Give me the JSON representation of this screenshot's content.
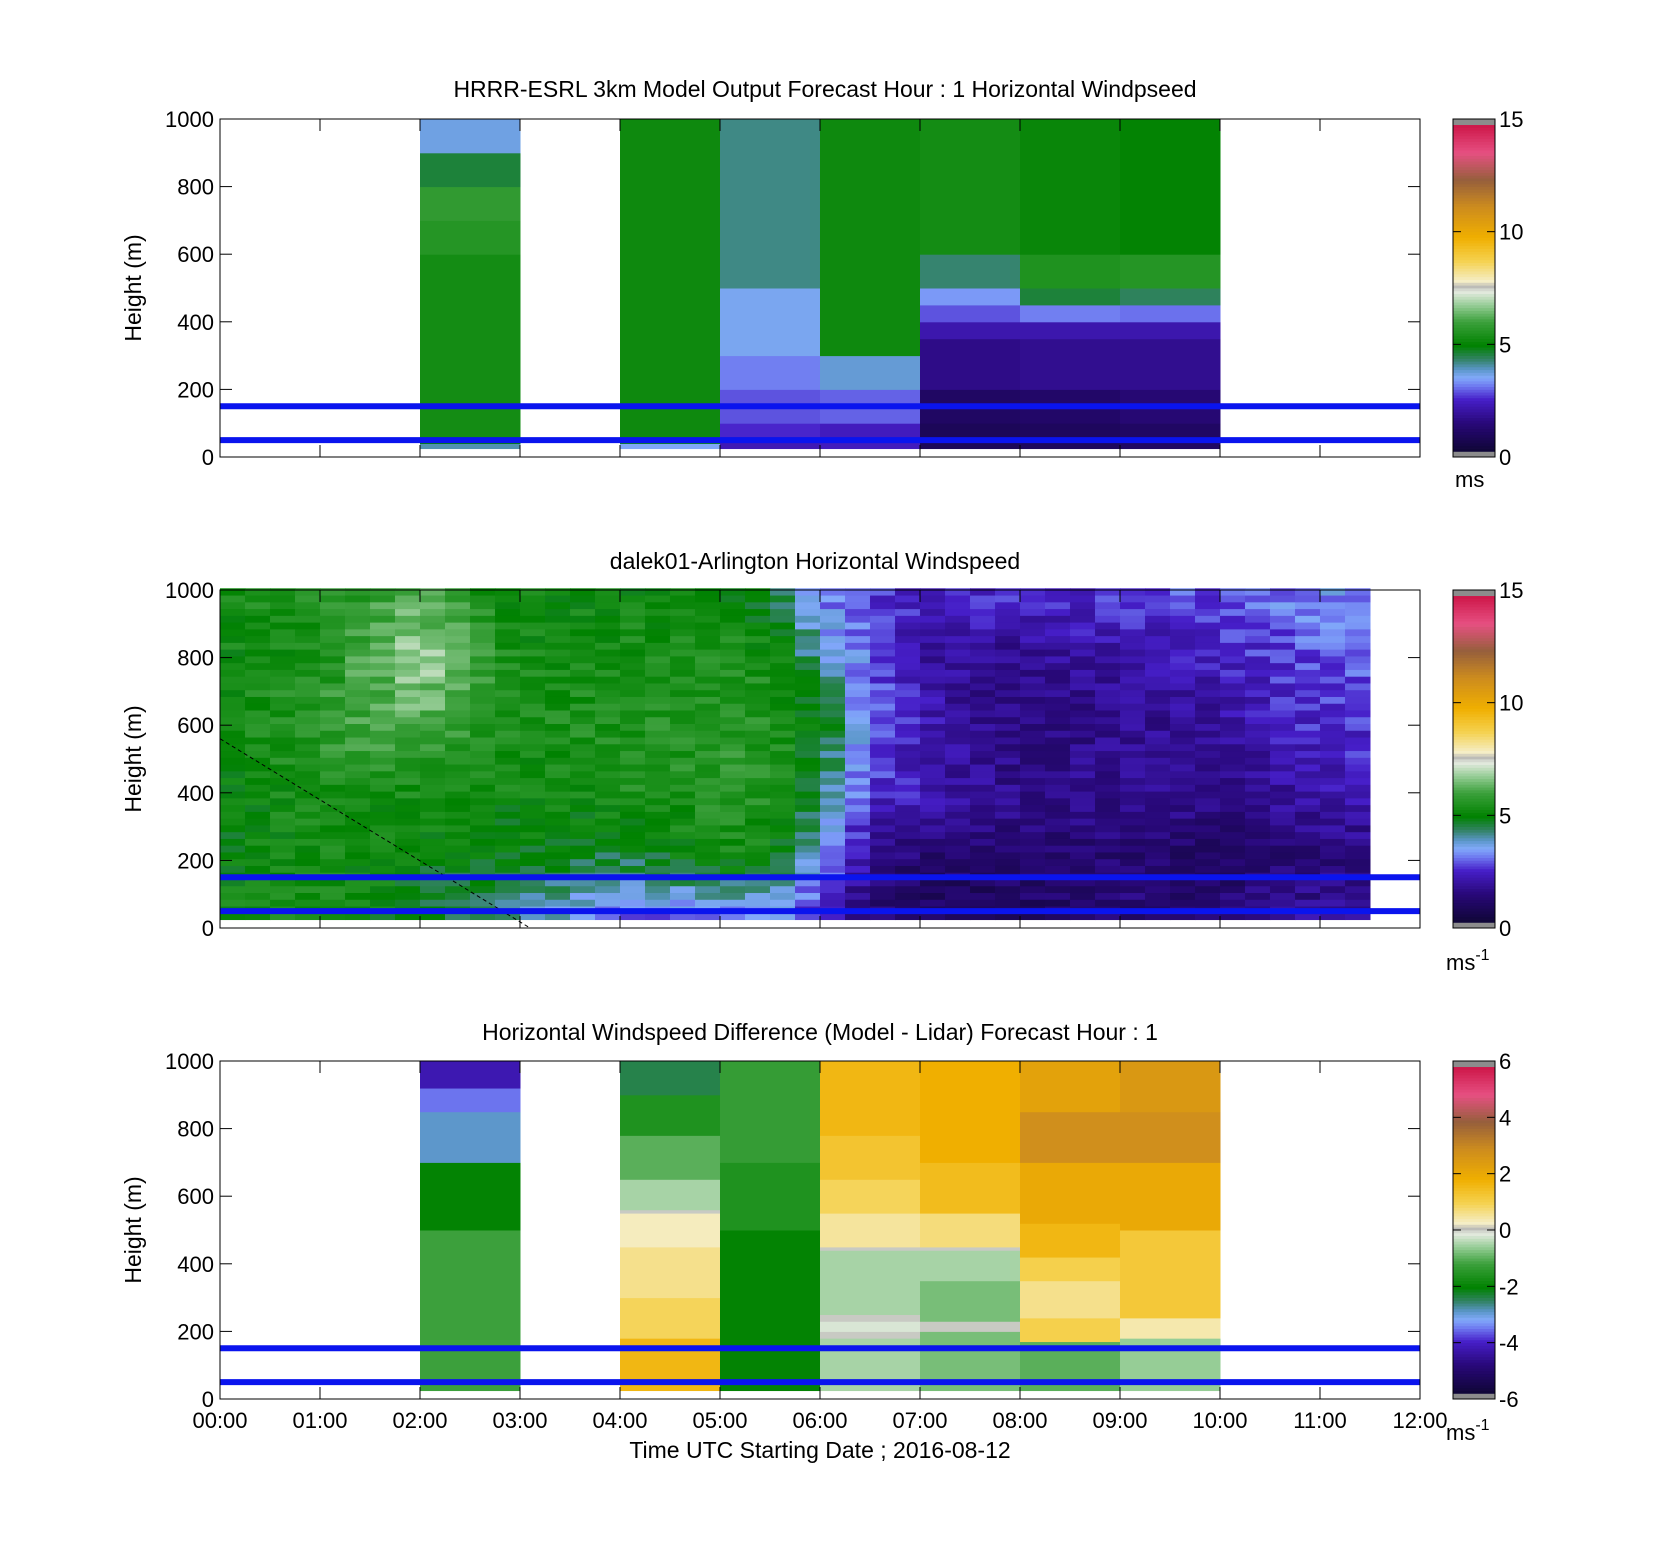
{
  "chart_data": [
    {
      "type": "heatmap",
      "title": "HRRR-ESRL 3km Model Output   Forecast Hour : 1 Horizontal Windpseed",
      "ylabel": "Height (m)",
      "xlabel": "",
      "x_range_hours": [
        0,
        12
      ],
      "ylim": [
        0,
        1000
      ],
      "yticks": [
        0,
        200,
        400,
        600,
        800,
        1000
      ],
      "colorbar": {
        "ticks": [
          0,
          5,
          10,
          15
        ],
        "unit": "ms",
        "unit_sup": "",
        "range": [
          0,
          15
        ]
      },
      "reference_lines_m": [
        50,
        150
      ],
      "cells": [
        {
          "x": [
            2,
            3
          ],
          "levels": [
            [
              25,
              40,
              4.0
            ],
            [
              40,
              60,
              5.0
            ],
            [
              60,
              1000,
              5.3
            ],
            [
              600,
              700,
              5.6
            ],
            [
              700,
              800,
              5.8
            ],
            [
              800,
              900,
              4.6
            ],
            [
              900,
              1000,
              3.7
            ]
          ]
        },
        {
          "x": [
            4,
            5
          ],
          "levels": [
            [
              25,
              40,
              3.5
            ],
            [
              40,
              60,
              4.8
            ],
            [
              60,
              1000,
              5.2
            ]
          ]
        },
        {
          "x": [
            5,
            6
          ],
          "levels": [
            [
              25,
              60,
              2.3
            ],
            [
              60,
              100,
              2.6
            ],
            [
              100,
              200,
              2.9
            ],
            [
              200,
              300,
              3.2
            ],
            [
              300,
              500,
              3.6
            ],
            [
              500,
              1000,
              4.2
            ]
          ]
        },
        {
          "x": [
            6,
            7
          ],
          "levels": [
            [
              25,
              100,
              2.4
            ],
            [
              100,
              200,
              3.0
            ],
            [
              200,
              300,
              3.8
            ],
            [
              300,
              1000,
              5.2
            ]
          ]
        },
        {
          "x": [
            7,
            8
          ],
          "levels": [
            [
              25,
              100,
              0.9
            ],
            [
              100,
              200,
              1.1
            ],
            [
              200,
              350,
              1.7
            ],
            [
              350,
              400,
              2.2
            ],
            [
              400,
              450,
              2.9
            ],
            [
              450,
              500,
              3.4
            ],
            [
              500,
              600,
              4.3
            ],
            [
              600,
              1000,
              5.3
            ]
          ]
        },
        {
          "x": [
            8,
            9
          ],
          "levels": [
            [
              25,
              100,
              1.0
            ],
            [
              100,
              200,
              1.2
            ],
            [
              200,
              350,
              1.8
            ],
            [
              350,
              400,
              2.2
            ],
            [
              400,
              450,
              3.2
            ],
            [
              450,
              500,
              4.6
            ],
            [
              500,
              600,
              5.5
            ],
            [
              600,
              1000,
              5.1
            ]
          ]
        },
        {
          "x": [
            9,
            10
          ],
          "levels": [
            [
              25,
              100,
              1.1
            ],
            [
              100,
              200,
              1.4
            ],
            [
              200,
              350,
              1.8
            ],
            [
              350,
              400,
              2.2
            ],
            [
              400,
              450,
              3.1
            ],
            [
              450,
              500,
              4.4
            ],
            [
              500,
              600,
              5.6
            ],
            [
              600,
              1000,
              5.0
            ]
          ]
        }
      ]
    },
    {
      "type": "heatmap",
      "title": "dalek01-Arlington  Horizontal Windspeed",
      "ylabel": "Height (m)",
      "xlabel": "",
      "x_range_hours": [
        0,
        12
      ],
      "ylim": [
        0,
        1000
      ],
      "yticks": [
        0,
        200,
        400,
        600,
        800,
        1000
      ],
      "colorbar": {
        "ticks": [
          0,
          5,
          10,
          15
        ],
        "unit": "ms",
        "unit_sup": "-1",
        "range": [
          0,
          15
        ]
      },
      "reference_lines_m": [
        50,
        150
      ],
      "lidar_range_hours": [
        0,
        11.5
      ],
      "column_hours": 0.25,
      "profile_times_hours": [
        0,
        1,
        2,
        3,
        4,
        5,
        5.5,
        6,
        6.5,
        7,
        8,
        9,
        10,
        11,
        11.5
      ],
      "profile_speeds": [
        [
          5.2,
          5.0,
          5.0,
          5.2,
          5.2,
          5.2
        ],
        [
          5.5,
          5.3,
          5.4,
          5.8,
          5.4,
          5.6
        ],
        [
          4.8,
          5.0,
          5.3,
          6.2,
          7.0,
          6.0
        ],
        [
          4.0,
          4.8,
          5.2,
          5.4,
          5.3,
          5.1
        ],
        [
          3.0,
          4.5,
          5.4,
          5.5,
          5.3,
          5.2
        ],
        [
          3.0,
          5.2,
          5.6,
          5.7,
          5.4,
          5.2
        ],
        [
          3.5,
          5.0,
          5.6,
          5.6,
          5.4,
          4.6
        ],
        [
          2.2,
          3.6,
          4.4,
          5.0,
          4.0,
          3.3
        ],
        [
          1.5,
          1.8,
          2.6,
          3.2,
          3.0,
          2.7
        ],
        [
          1.0,
          1.2,
          2.3,
          2.3,
          2.0,
          2.6
        ],
        [
          1.0,
          1.3,
          1.7,
          1.5,
          1.8,
          2.6
        ],
        [
          1.4,
          1.4,
          1.8,
          1.8,
          2.1,
          2.7
        ],
        [
          1.6,
          1.1,
          1.8,
          2.0,
          2.4,
          3.0
        ],
        [
          2.0,
          1.4,
          2.1,
          2.6,
          2.9,
          3.4
        ],
        [
          2.2,
          1.6,
          2.3,
          2.7,
          3.0,
          3.4
        ]
      ],
      "profile_heights_m": [
        25,
        200,
        400,
        600,
        800,
        1000
      ],
      "dashed_line": {
        "from": [
          0,
          560
        ],
        "to": [
          3.1,
          0
        ]
      }
    },
    {
      "type": "heatmap",
      "title": "Horizontal Windspeed Difference (Model - Lidar) Forecast Hour : 1",
      "ylabel": "Height (m)",
      "xlabel": "Time UTC  Starting Date ; 2016-08-12",
      "x_range_hours": [
        0,
        12
      ],
      "xticks": [
        "00:00",
        "01:00",
        "02:00",
        "03:00",
        "04:00",
        "05:00",
        "06:00",
        "07:00",
        "08:00",
        "09:00",
        "10:00",
        "11:00",
        "12:00"
      ],
      "ylim": [
        0,
        1000
      ],
      "yticks": [
        0,
        200,
        400,
        600,
        800,
        1000
      ],
      "colorbar": {
        "ticks": [
          -6,
          -4,
          -2,
          0,
          2,
          4,
          6
        ],
        "unit": "ms",
        "unit_sup": "-1",
        "range": [
          -6,
          6
        ]
      },
      "reference_lines_m": [
        50,
        150
      ],
      "cells": [
        {
          "x": [
            2,
            3
          ],
          "levels": [
            [
              25,
              500,
              -1.2
            ],
            [
              500,
              700,
              -2.0
            ],
            [
              700,
              850,
              -2.9
            ],
            [
              850,
              920,
              -3.5
            ],
            [
              920,
              1000,
              -4.2
            ]
          ]
        },
        {
          "x": [
            4,
            5
          ],
          "levels": [
            [
              25,
              180,
              1.6
            ],
            [
              180,
              300,
              0.9
            ],
            [
              300,
              450,
              0.6
            ],
            [
              450,
              550,
              0.3
            ],
            [
              550,
              560,
              0.0
            ],
            [
              560,
              650,
              -0.5
            ],
            [
              650,
              780,
              -1.0
            ],
            [
              780,
              900,
              -1.6
            ],
            [
              900,
              1000,
              -2.4
            ]
          ]
        },
        {
          "x": [
            5,
            6
          ],
          "levels": [
            [
              25,
              500,
              -2.0
            ],
            [
              500,
              700,
              -1.6
            ],
            [
              700,
              1000,
              -1.3
            ]
          ]
        },
        {
          "x": [
            6,
            7
          ],
          "levels": [
            [
              25,
              180,
              -0.5
            ],
            [
              180,
              200,
              0.0
            ],
            [
              200,
              230,
              -0.2
            ],
            [
              230,
              250,
              0.0
            ],
            [
              250,
              440,
              -0.5
            ],
            [
              440,
              450,
              0.0
            ],
            [
              450,
              550,
              0.5
            ],
            [
              550,
              650,
              0.9
            ],
            [
              650,
              780,
              1.3
            ],
            [
              780,
              1000,
              1.6
            ]
          ]
        },
        {
          "x": [
            7,
            8
          ],
          "levels": [
            [
              25,
              200,
              -0.8
            ],
            [
              200,
              230,
              0.0
            ],
            [
              230,
              350,
              -0.8
            ],
            [
              350,
              440,
              -0.5
            ],
            [
              440,
              450,
              0.0
            ],
            [
              450,
              550,
              0.7
            ],
            [
              550,
              700,
              1.5
            ],
            [
              700,
              1000,
              1.8
            ]
          ]
        },
        {
          "x": [
            8,
            9
          ],
          "levels": [
            [
              25,
              170,
              -1.0
            ],
            [
              170,
              240,
              1.0
            ],
            [
              240,
              350,
              0.6
            ],
            [
              350,
              420,
              1.0
            ],
            [
              420,
              520,
              1.6
            ],
            [
              520,
              700,
              2.0
            ],
            [
              700,
              850,
              2.8
            ],
            [
              850,
              1000,
              2.2
            ]
          ]
        },
        {
          "x": [
            9,
            10
          ],
          "levels": [
            [
              25,
              180,
              -0.6
            ],
            [
              180,
              240,
              0.4
            ],
            [
              240,
              500,
              1.2
            ],
            [
              500,
              700,
              2.0
            ],
            [
              700,
              850,
              2.8
            ],
            [
              850,
              1000,
              2.5
            ]
          ]
        }
      ]
    }
  ]
}
